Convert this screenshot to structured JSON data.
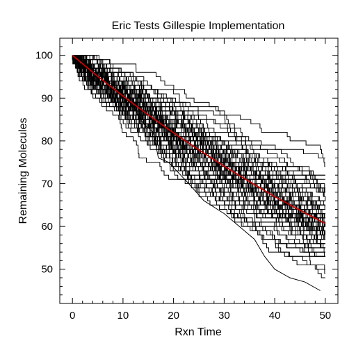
{
  "chart_data": {
    "type": "line",
    "title": "Eric Tests Gillespie Implementation",
    "xlabel": "Rxn Time",
    "ylabel": "Remaining Molecules",
    "xlim": [
      -2.5,
      52.5
    ],
    "ylim": [
      42,
      104
    ],
    "xticks": [
      0,
      10,
      20,
      30,
      40,
      50
    ],
    "yticks": [
      50,
      60,
      70,
      80,
      90,
      100
    ],
    "grid": false,
    "legend": "none",
    "colors": {
      "trajectories": "#000000",
      "mean": "#cc0000"
    },
    "trajectory_count": 100,
    "trajectory_generator": {
      "y0": 100,
      "rate": 0.01,
      "t_end": 50
    },
    "mean_curve": {
      "x": [
        0,
        5,
        10,
        15,
        20,
        25,
        30,
        35,
        40,
        45,
        50
      ],
      "y": [
        100,
        95.1,
        90.5,
        86.1,
        81.9,
        77.9,
        74.1,
        70.5,
        67.0,
        63.8,
        60.7
      ]
    },
    "outlier_trajectory": {
      "x": [
        0,
        5,
        9,
        12,
        14,
        16,
        17,
        19,
        23,
        26,
        30,
        33,
        36,
        38,
        40,
        43,
        46,
        49
      ],
      "y": [
        100,
        96,
        92,
        88,
        84,
        82,
        76,
        75,
        70,
        66,
        63,
        60,
        57,
        53,
        50,
        48,
        47,
        45
      ]
    }
  }
}
